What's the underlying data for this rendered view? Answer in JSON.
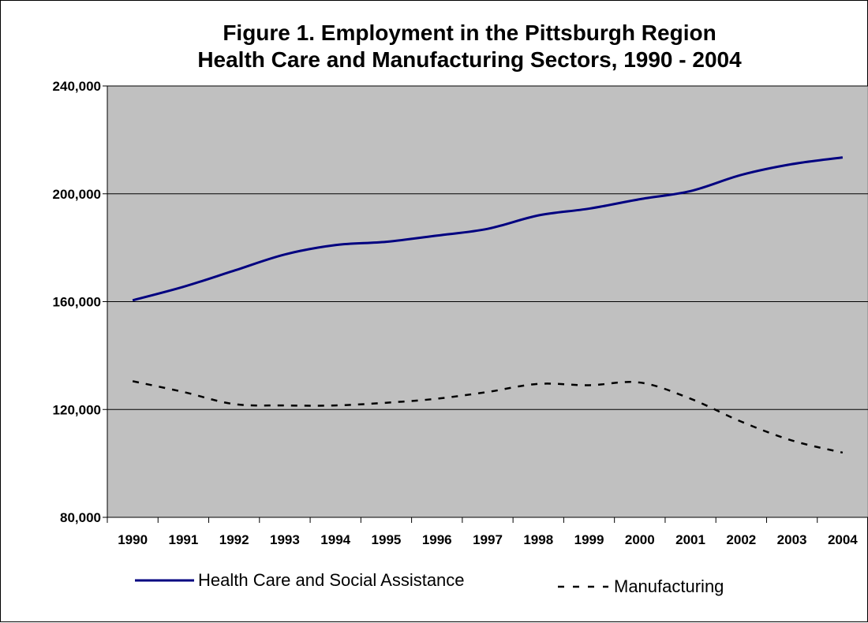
{
  "chart_data": {
    "type": "line",
    "title_lines": [
      "Figure 1.  Employment in the Pittsburgh Region",
      "Health Care and Manufacturing Sectors, 1990 - 2004"
    ],
    "xlabel": "",
    "ylabel": "",
    "x": [
      "1990",
      "1991",
      "1992",
      "1993",
      "1994",
      "1995",
      "1996",
      "1997",
      "1998",
      "1999",
      "2000",
      "2001",
      "2002",
      "2003",
      "2004"
    ],
    "ylim": [
      80000,
      240000
    ],
    "yticks": [
      80000,
      120000,
      160000,
      200000,
      240000
    ],
    "ytick_labels": [
      "80,000",
      "120,000",
      "160,000",
      "200,000",
      "240,000"
    ],
    "grid": true,
    "plot_background": "#c0c0c0",
    "legend_position": "bottom",
    "series": [
      {
        "name": "Health Care and Social Assistance",
        "color": "#000080",
        "style": "solid",
        "values": [
          160500,
          165500,
          171500,
          177500,
          181000,
          182200,
          184500,
          187000,
          192000,
          194500,
          198000,
          201000,
          207000,
          211000,
          213500
        ]
      },
      {
        "name": "Manufacturing",
        "color": "#000000",
        "style": "dashed",
        "values": [
          130500,
          126500,
          122000,
          121500,
          121500,
          122500,
          124000,
          126500,
          129500,
          129000,
          130000,
          124000,
          115500,
          108500,
          104000
        ]
      }
    ]
  }
}
